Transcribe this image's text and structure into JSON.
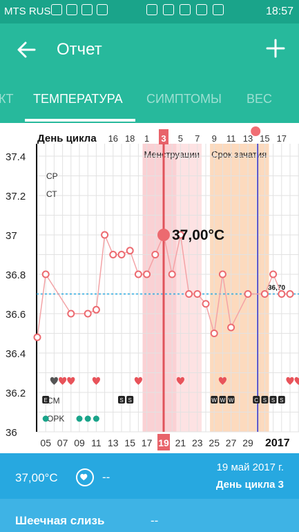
{
  "status": {
    "carrier": "MTS RUS",
    "time": "18:57"
  },
  "appbar": {
    "title": "Отчет",
    "back_icon": "arrow-left-icon",
    "add_icon": "plus-icon"
  },
  "tabs": [
    "КТ",
    "ТЕМПЕРАТУРА",
    "СИМПТОМЫ",
    "ВЕС",
    ""
  ],
  "active_tab": 1,
  "chart_data": {
    "type": "line",
    "header_label": "День цикла",
    "cycle_days": [
      "16",
      "18",
      "1",
      "3",
      "5",
      "7",
      "9",
      "11",
      "13",
      "15",
      "17"
    ],
    "current_cycle_day": "3",
    "dates": [
      "05",
      "07",
      "09",
      "11",
      "13",
      "15",
      "17",
      "19",
      "21",
      "23",
      "25",
      "27",
      "29"
    ],
    "current_date": "19",
    "year": "2017",
    "ylim": [
      36,
      37.5
    ],
    "yticks": [
      "37.4",
      "37.2",
      "37",
      "36.8",
      "36.6",
      "36.4",
      "36.2",
      "36"
    ],
    "x_days": [
      4,
      5,
      6,
      7,
      8,
      9,
      10,
      11,
      12,
      13,
      14,
      15,
      16,
      17,
      18,
      19,
      20,
      21,
      22,
      23,
      24,
      25,
      26,
      27,
      28,
      29,
      30,
      31,
      32,
      33,
      34,
      35
    ],
    "temperatures": [
      36.48,
      36.8,
      null,
      null,
      36.6,
      null,
      36.6,
      36.62,
      37.0,
      36.9,
      36.9,
      36.92,
      36.8,
      36.8,
      36.9,
      37.0,
      36.8,
      37.0,
      36.7,
      36.7,
      36.65,
      36.5,
      36.8,
      36.53,
      null,
      36.7,
      null,
      36.7,
      36.8,
      36.7,
      36.7,
      null
    ],
    "current_value": "37,00°C",
    "cover_line": "36,70",
    "cover_value": 36.7,
    "bands": [
      {
        "label": "Менструации",
        "from": 17,
        "to": 23,
        "color": "#f9c9cc",
        "light": "#fde2e3"
      },
      {
        "label": "Срок зачатия",
        "from": 25,
        "to": 31,
        "color": "#fcd3b3"
      }
    ],
    "row_labels": [
      "СР",
      "СТ",
      "CM",
      "OPK"
    ],
    "marker_colors": {
      "accent": "#1aa48a",
      "temp": "#f07b7f",
      "heart": "#e8535a",
      "today": "#2b2fd0"
    }
  },
  "footer": {
    "temp": "37,00°C",
    "dash": "--",
    "date": "19 май 2017 г.",
    "cycle": "День цикла 3"
  },
  "row2": {
    "label": "Шеечная слизь",
    "value": "--"
  }
}
